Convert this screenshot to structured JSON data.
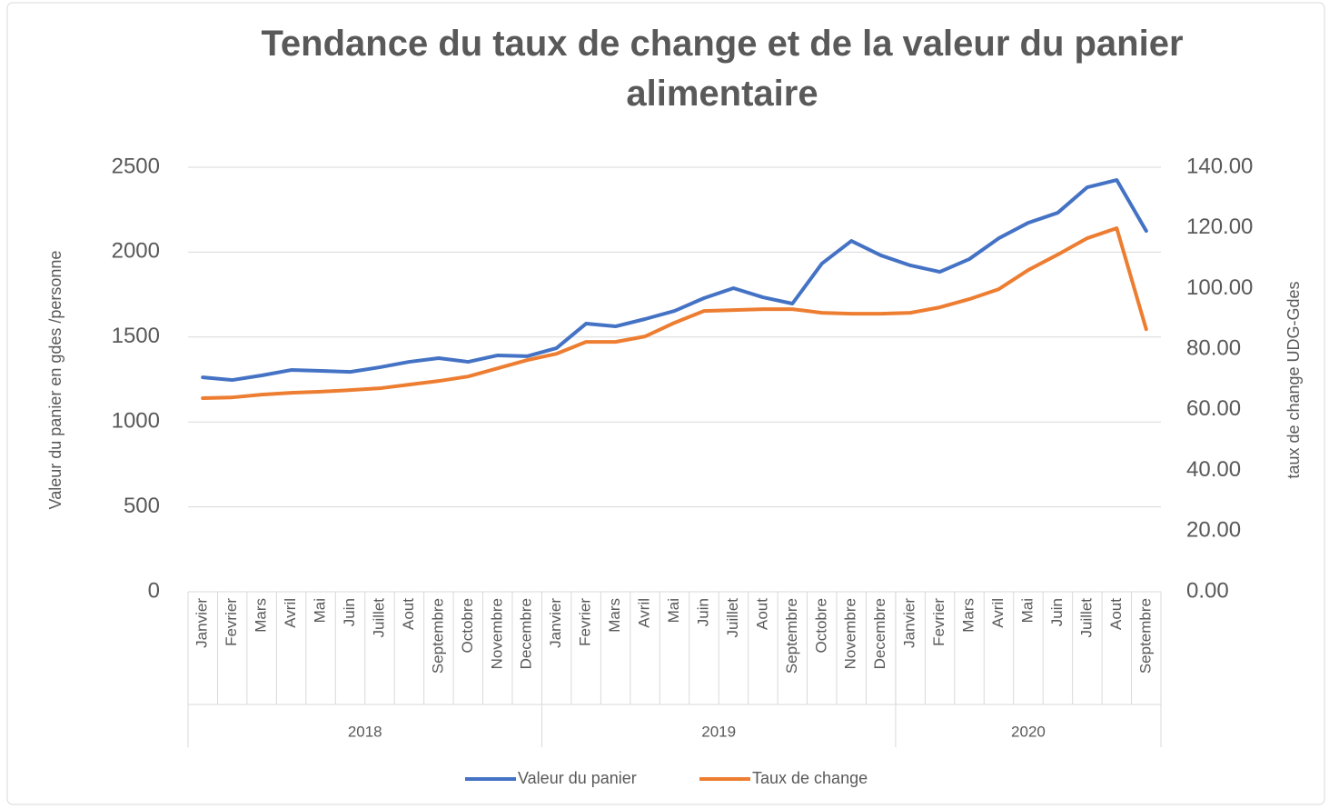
{
  "chart_data": {
    "type": "line",
    "title": "Tendance du taux de change et de la valeur du panier alimentaire",
    "categories": [
      "Janvier",
      "Fevrier",
      "Mars",
      "Avril",
      "Mai",
      "Juin",
      "Juillet",
      "Aout",
      "Septembre",
      "Octobre",
      "Novembre",
      "Decembre",
      "Janvier",
      "Fevrier",
      "Mars",
      "Avril",
      "Mai",
      "Juin",
      "Juillet",
      "Aout",
      "Septembre",
      "Octobre",
      "Novembre",
      "Decembre",
      "Janvier",
      "Fevrier",
      "Mars",
      "Avril",
      "Mai",
      "Juin",
      "Juillet",
      "Aout",
      "Septembre"
    ],
    "category_groups": [
      {
        "label": "2018",
        "count": 12
      },
      {
        "label": "2019",
        "count": 12
      },
      {
        "label": "2020",
        "count": 9
      }
    ],
    "y_label": "Valeur du panier  en  gdes /personne",
    "y2_label": "taux de change  UDG-Gdes",
    "ylim": [
      0,
      2500
    ],
    "yticks": [
      0,
      500,
      1000,
      1500,
      2000,
      2500
    ],
    "y2lim": [
      0,
      140
    ],
    "y2ticks": [
      {
        "value": 0,
        "label": "0.00"
      },
      {
        "value": 20,
        "label": "20.00"
      },
      {
        "value": 40,
        "label": "40.00"
      },
      {
        "value": 60,
        "label": "60.00"
      },
      {
        "value": 80,
        "label": "80.00"
      },
      {
        "value": 100,
        "label": "100.00"
      },
      {
        "value": 120,
        "label": "120.00"
      },
      {
        "value": 140,
        "label": "140.00"
      }
    ],
    "grid": true,
    "legend": "bottom",
    "series": [
      {
        "name": "Valeur du panier",
        "color": "#4472c4",
        "axis": "y",
        "values": [
          1263,
          1247,
          1274,
          1306,
          1301,
          1295,
          1322,
          1354,
          1376,
          1354,
          1392,
          1387,
          1435,
          1579,
          1563,
          1606,
          1654,
          1729,
          1788,
          1734,
          1697,
          1933,
          2066,
          1981,
          1922,
          1884,
          1959,
          2082,
          2173,
          2232,
          2382,
          2425,
          2125
        ]
      },
      {
        "name": "Taux de change",
        "color": "#ed7d31",
        "axis": "y2",
        "values": [
          63.85,
          64.1,
          65.0,
          65.6,
          66.0,
          66.5,
          67.1,
          68.3,
          69.5,
          71.0,
          73.7,
          76.4,
          78.5,
          82.4,
          82.4,
          84.2,
          88.7,
          92.6,
          92.9,
          93.2,
          93.2,
          92.0,
          91.7,
          91.7,
          92.0,
          93.8,
          96.5,
          99.8,
          106.1,
          111.2,
          116.6,
          119.9,
          86.6
        ]
      }
    ]
  }
}
